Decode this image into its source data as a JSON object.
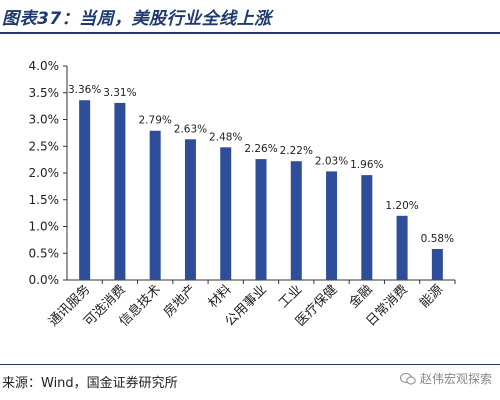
{
  "header": {
    "title": "图表37：当周，美股行业全线上涨"
  },
  "footer": {
    "source": "来源：Wind，国金证券研究所"
  },
  "watermark": {
    "text": "赵伟宏观探索",
    "icon": "wechat-icon"
  },
  "colors": {
    "bar": "#2e4e9a",
    "title": "#1f3a6e"
  },
  "chart_data": {
    "type": "bar",
    "categories": [
      "通讯服务",
      "可选消费",
      "信息技术",
      "房地产",
      "材料",
      "公用事业",
      "工业",
      "医疗保健",
      "金融",
      "日常消费",
      "能源"
    ],
    "values": [
      3.36,
      3.31,
      2.79,
      2.63,
      2.48,
      2.26,
      2.22,
      2.03,
      1.96,
      1.2,
      0.58
    ],
    "data_labels": [
      "3.36%",
      "3.31%",
      "2.79%",
      "2.63%",
      "2.48%",
      "2.26%",
      "2.22%",
      "2.03%",
      "1.96%",
      "1.20%",
      "0.58%"
    ],
    "yticks": [
      "0.0%",
      "0.5%",
      "1.0%",
      "1.5%",
      "2.0%",
      "2.5%",
      "3.0%",
      "3.5%",
      "4.0%"
    ],
    "ylim": [
      0,
      4
    ],
    "ytick_step": 0.5,
    "grid": false,
    "legend": "none"
  }
}
